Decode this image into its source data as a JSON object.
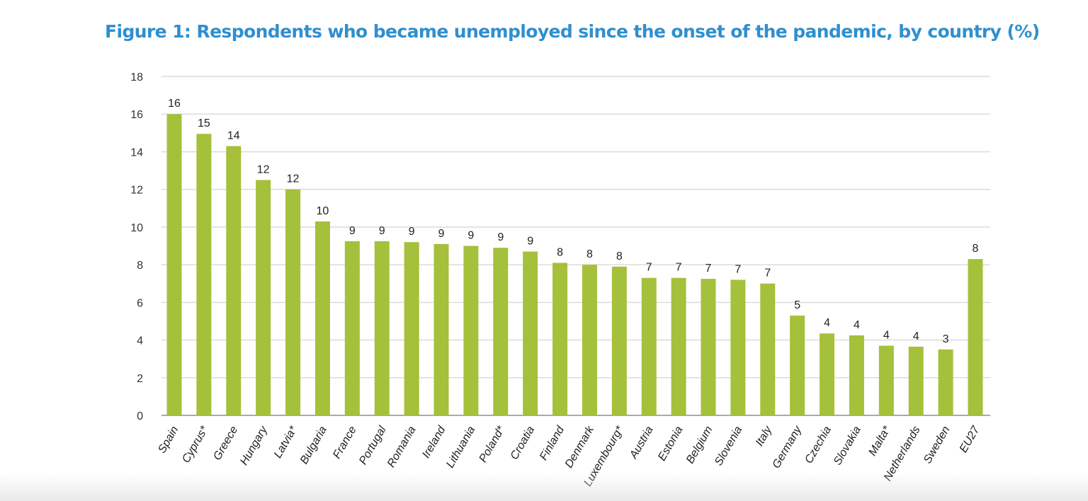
{
  "chart_data": {
    "type": "bar",
    "title": "Figure 1: Respondents who became unemployed since the onset of the pandemic, by country (%)",
    "xlabel": "",
    "ylabel": "",
    "ylim": [
      0,
      18
    ],
    "yticks": [
      0,
      2,
      4,
      6,
      8,
      10,
      12,
      14,
      16,
      18
    ],
    "grid": true,
    "bar_color": "#a5c03a",
    "categories": [
      "Spain",
      "Cyprus*",
      "Greece",
      "Hungary",
      "Latvia*",
      "Bulgaria",
      "France",
      "Portugal",
      "Romania",
      "Ireland",
      "Lithuania",
      "Poland*",
      "Croatia",
      "Finland",
      "Denmark",
      "Luxembourg*",
      "Austria",
      "Estonia",
      "Belgium",
      "Slovenia",
      "Italy",
      "Germany",
      "Czechia",
      "Slovakia",
      "Malta*",
      "Netherlands",
      "Sweden",
      "EU27"
    ],
    "values": [
      16.0,
      14.95,
      14.3,
      12.5,
      12.0,
      10.3,
      9.25,
      9.25,
      9.2,
      9.1,
      9.0,
      8.9,
      8.7,
      8.1,
      8.0,
      7.9,
      7.3,
      7.3,
      7.25,
      7.2,
      7.0,
      5.3,
      4.35,
      4.25,
      3.7,
      3.65,
      3.5,
      8.3
    ],
    "data_labels": [
      "16",
      "15",
      "14",
      "12",
      "12",
      "10",
      "9",
      "9",
      "9",
      "9",
      "9",
      "9",
      "9",
      "8",
      "8",
      "8",
      "7",
      "7",
      "7",
      "7",
      "7",
      "5",
      "4",
      "4",
      "4",
      "4",
      "3",
      "8"
    ]
  }
}
